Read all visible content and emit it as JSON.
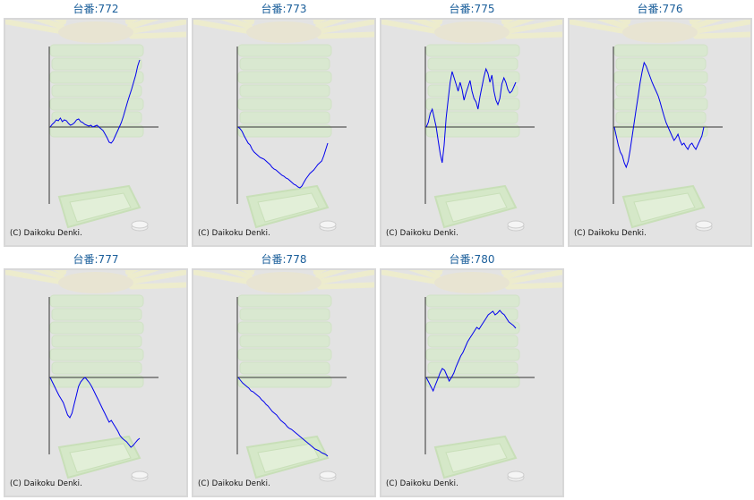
{
  "copyright": "(C) Daikoku Denki.",
  "colors": {
    "line": "#0000ee",
    "axis": "#333333",
    "title": "#1a5e9a",
    "background": "#e3e3e3"
  },
  "chart_data": [
    {
      "type": "line",
      "title": "台番:772",
      "values": [
        0,
        3,
        5,
        8,
        7,
        10,
        6,
        8,
        7,
        4,
        2,
        3,
        5,
        8,
        9,
        6,
        5,
        3,
        2,
        1,
        2,
        0,
        1,
        2,
        0,
        -2,
        -4,
        -8,
        -12,
        -17,
        -18,
        -15,
        -10,
        -5,
        0,
        5,
        12,
        20,
        28,
        35,
        42,
        50,
        58,
        68,
        75
      ]
    },
    {
      "type": "line",
      "title": "台番:773",
      "values": [
        0,
        -2,
        -5,
        -10,
        -14,
        -18,
        -20,
        -25,
        -28,
        -30,
        -32,
        -34,
        -35,
        -36,
        -38,
        -40,
        -42,
        -45,
        -47,
        -48,
        -50,
        -52,
        -54,
        -55,
        -57,
        -58,
        -60,
        -62,
        -64,
        -65,
        -67,
        -68,
        -66,
        -62,
        -58,
        -55,
        -52,
        -50,
        -48,
        -45,
        -42,
        -40,
        -38,
        -32,
        -25,
        -18
      ]
    },
    {
      "type": "line",
      "title": "台番:775",
      "values": [
        0,
        5,
        15,
        20,
        10,
        0,
        -15,
        -30,
        -40,
        -20,
        10,
        30,
        50,
        62,
        55,
        48,
        40,
        50,
        42,
        30,
        38,
        45,
        52,
        40,
        32,
        28,
        20,
        34,
        45,
        56,
        65,
        60,
        50,
        58,
        40,
        30,
        25,
        32,
        48,
        55,
        50,
        42,
        38,
        40,
        45,
        50
      ]
    },
    {
      "type": "line",
      "title": "台番:776",
      "values": [
        0,
        -10,
        -20,
        -28,
        -32,
        -40,
        -45,
        -38,
        -25,
        -10,
        5,
        20,
        35,
        50,
        62,
        72,
        68,
        62,
        56,
        50,
        45,
        40,
        35,
        28,
        20,
        12,
        5,
        0,
        -5,
        -10,
        -15,
        -12,
        -8,
        -15,
        -20,
        -18,
        -22,
        -25,
        -20,
        -18,
        -22,
        -25,
        -20,
        -15,
        -10,
        0
      ]
    },
    {
      "type": "line",
      "title": "台番:777",
      "values": [
        0,
        -5,
        -10,
        -15,
        -20,
        -24,
        -28,
        -35,
        -42,
        -45,
        -40,
        -30,
        -20,
        -10,
        -5,
        -2,
        0,
        -3,
        -6,
        -10,
        -15,
        -20,
        -25,
        -30,
        -35,
        -40,
        -45,
        -50,
        -48,
        -52,
        -56,
        -60,
        -65,
        -68,
        -70,
        -72,
        -75,
        -78,
        -76,
        -73,
        -70,
        -68
      ]
    },
    {
      "type": "line",
      "title": "台番:778",
      "values": [
        0,
        -3,
        -6,
        -8,
        -10,
        -12,
        -15,
        -16,
        -18,
        -20,
        -22,
        -25,
        -27,
        -30,
        -32,
        -35,
        -38,
        -40,
        -42,
        -45,
        -48,
        -50,
        -52,
        -55,
        -57,
        -58,
        -60,
        -62,
        -64,
        -66,
        -68,
        -70,
        -72,
        -74,
        -76,
        -78,
        -80,
        -81,
        -82,
        -84,
        -85,
        -86,
        -88
      ]
    },
    {
      "type": "line",
      "title": "台番:780",
      "values": [
        0,
        -5,
        -10,
        -15,
        -8,
        -2,
        5,
        10,
        8,
        2,
        -4,
        0,
        5,
        12,
        18,
        24,
        28,
        34,
        40,
        44,
        48,
        52,
        56,
        54,
        58,
        62,
        66,
        70,
        72,
        74,
        70,
        72,
        75,
        72,
        70,
        66,
        62,
        60,
        58,
        55
      ]
    }
  ]
}
